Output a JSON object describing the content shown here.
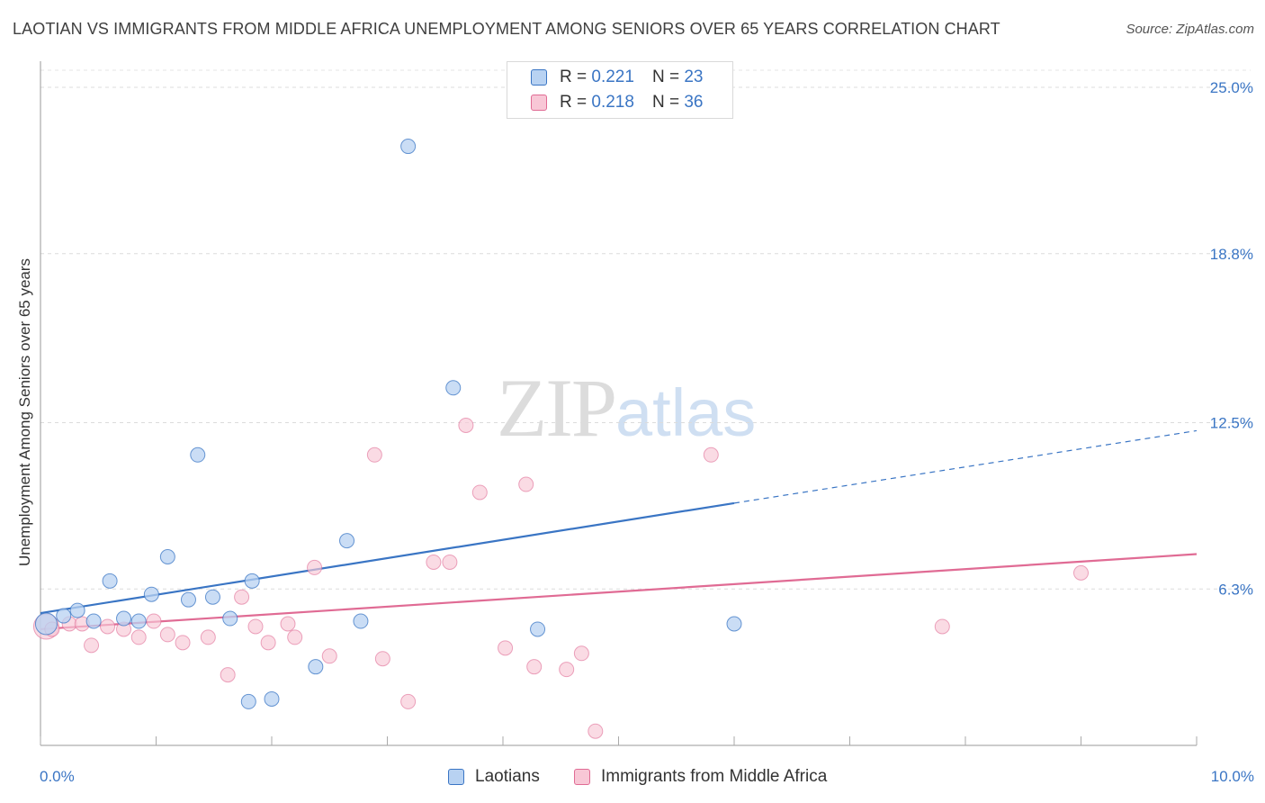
{
  "title": "LAOTIAN VS IMMIGRANTS FROM MIDDLE AFRICA UNEMPLOYMENT AMONG SENIORS OVER 65 YEARS CORRELATION CHART",
  "source": "Source: ZipAtlas.com",
  "watermark": {
    "zip": "ZIP",
    "atlas": "atlas"
  },
  "legend": {
    "r_label": "R =",
    "n_label": "N =",
    "rows": [
      {
        "r": "0.221",
        "n": "23"
      },
      {
        "r": "0.218",
        "n": "36"
      }
    ]
  },
  "chart_data": {
    "type": "scatter",
    "title": "LAOTIAN VS IMMIGRANTS FROM MIDDLE AFRICA UNEMPLOYMENT AMONG SENIORS OVER 65 YEARS CORRELATION CHART",
    "xlabel": "",
    "ylabel": "Unemployment Among Seniors over 65 years",
    "xlim": [
      0,
      10
    ],
    "ylim": [
      0,
      26
    ],
    "x_tick_labels": [
      "0.0%",
      "10.0%"
    ],
    "y_ticks": [
      6.3,
      12.5,
      18.8,
      25.0
    ],
    "y_tick_labels": [
      "6.3%",
      "12.5%",
      "18.8%",
      "25.0%"
    ],
    "grid": true,
    "legend_position": "bottom-center",
    "colors": {
      "laotians": "#3a75c4",
      "middle_africa": "#e06b94",
      "laotians_fill": "#b8d2f2",
      "middle_africa_fill": "#f8c7d6"
    },
    "series": [
      {
        "name": "Laotians",
        "points": [
          [
            0.05,
            5.0
          ],
          [
            0.2,
            5.3
          ],
          [
            0.32,
            5.5
          ],
          [
            0.46,
            5.1
          ],
          [
            0.6,
            6.6
          ],
          [
            0.72,
            5.2
          ],
          [
            0.85,
            5.1
          ],
          [
            0.96,
            6.1
          ],
          [
            1.1,
            7.5
          ],
          [
            1.28,
            5.9
          ],
          [
            1.36,
            11.3
          ],
          [
            1.49,
            6.0
          ],
          [
            1.64,
            5.2
          ],
          [
            1.8,
            2.1
          ],
          [
            1.83,
            6.6
          ],
          [
            2.0,
            2.2
          ],
          [
            2.38,
            3.4
          ],
          [
            2.65,
            8.1
          ],
          [
            2.77,
            5.1
          ],
          [
            3.18,
            22.8
          ],
          [
            3.57,
            13.8
          ],
          [
            4.3,
            4.8
          ],
          [
            6.0,
            5.0
          ]
        ],
        "trend": {
          "x": [
            0.0,
            6.0
          ],
          "y": [
            5.4,
            9.5
          ]
        },
        "trend_extension": {
          "x": [
            6.0,
            10.0
          ],
          "y": [
            9.5,
            12.2
          ]
        }
      },
      {
        "name": "Immigrants from Middle Africa",
        "points": [
          [
            0.05,
            4.9
          ],
          [
            0.25,
            5.0
          ],
          [
            0.36,
            5.0
          ],
          [
            0.44,
            4.2
          ],
          [
            0.58,
            4.9
          ],
          [
            0.72,
            4.8
          ],
          [
            0.85,
            4.5
          ],
          [
            0.98,
            5.1
          ],
          [
            1.1,
            4.6
          ],
          [
            1.23,
            4.3
          ],
          [
            1.45,
            4.5
          ],
          [
            1.62,
            3.1
          ],
          [
            1.74,
            6.0
          ],
          [
            1.86,
            4.9
          ],
          [
            1.97,
            4.3
          ],
          [
            2.14,
            5.0
          ],
          [
            2.2,
            4.5
          ],
          [
            2.37,
            7.1
          ],
          [
            2.5,
            3.8
          ],
          [
            2.89,
            11.3
          ],
          [
            2.96,
            3.7
          ],
          [
            3.18,
            2.1
          ],
          [
            3.4,
            7.3
          ],
          [
            3.54,
            7.3
          ],
          [
            3.68,
            12.4
          ],
          [
            3.8,
            9.9
          ],
          [
            4.02,
            4.1
          ],
          [
            4.2,
            10.2
          ],
          [
            4.27,
            3.4
          ],
          [
            4.55,
            3.3
          ],
          [
            4.68,
            3.9
          ],
          [
            4.8,
            1.0
          ],
          [
            5.8,
            11.3
          ],
          [
            7.8,
            4.9
          ],
          [
            9.0,
            6.9
          ],
          [
            0.1,
            4.8
          ]
        ],
        "trend": {
          "x": [
            0.0,
            10.0
          ],
          "y": [
            4.8,
            7.6
          ]
        }
      }
    ]
  },
  "bottom_legend": [
    {
      "label": "Laotians"
    },
    {
      "label": "Immigrants from Middle Africa"
    }
  ]
}
